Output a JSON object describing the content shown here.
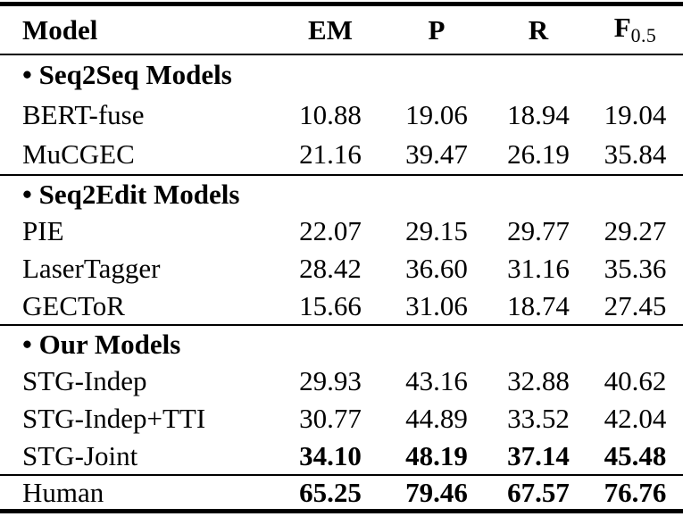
{
  "table": {
    "header": {
      "model": "Model",
      "em": "EM",
      "p": "P",
      "r": "R",
      "f": "F",
      "f_sub": "0.5"
    },
    "rows": [
      {
        "type": "section",
        "label": "• Seq2Seq Models",
        "rule_above": false
      },
      {
        "type": "data",
        "cells": [
          "BERT-fuse",
          "10.88",
          "19.06",
          "18.94",
          "19.04"
        ],
        "bold_values": false,
        "rule_above": false
      },
      {
        "type": "data",
        "cells": [
          "MuCGEC",
          "21.16",
          "39.47",
          "26.19",
          "35.84"
        ],
        "bold_values": false,
        "rule_above": false
      },
      {
        "type": "section",
        "label": "• Seq2Edit Models",
        "rule_above": true
      },
      {
        "type": "data",
        "cells": [
          "PIE",
          "22.07",
          "29.15",
          "29.77",
          "29.27"
        ],
        "bold_values": false,
        "rule_above": false
      },
      {
        "type": "data",
        "cells": [
          "LaserTagger",
          "28.42",
          "36.60",
          "31.16",
          "35.36"
        ],
        "bold_values": false,
        "rule_above": false
      },
      {
        "type": "data",
        "cells": [
          "GECToR",
          "15.66",
          "31.06",
          "18.74",
          "27.45"
        ],
        "bold_values": false,
        "rule_above": false
      },
      {
        "type": "section",
        "label": "• Our Models",
        "rule_above": true
      },
      {
        "type": "data",
        "cells": [
          "STG-Indep",
          "29.93",
          "43.16",
          "32.88",
          "40.62"
        ],
        "bold_values": false,
        "rule_above": false
      },
      {
        "type": "data",
        "cells": [
          "STG-Indep+TTI",
          "30.77",
          "44.89",
          "33.52",
          "42.04"
        ],
        "bold_values": false,
        "rule_above": false
      },
      {
        "type": "data",
        "cells": [
          "STG-Joint",
          "34.10",
          "48.19",
          "37.14",
          "45.48"
        ],
        "bold_values": true,
        "rule_above": false
      },
      {
        "type": "data",
        "cells": [
          "Human",
          "65.25",
          "79.46",
          "67.57",
          "76.76"
        ],
        "bold_values": true,
        "rule_above": true
      }
    ],
    "colors": {
      "text": "#000000",
      "background": "#ffffff",
      "rule": "#000000"
    }
  }
}
